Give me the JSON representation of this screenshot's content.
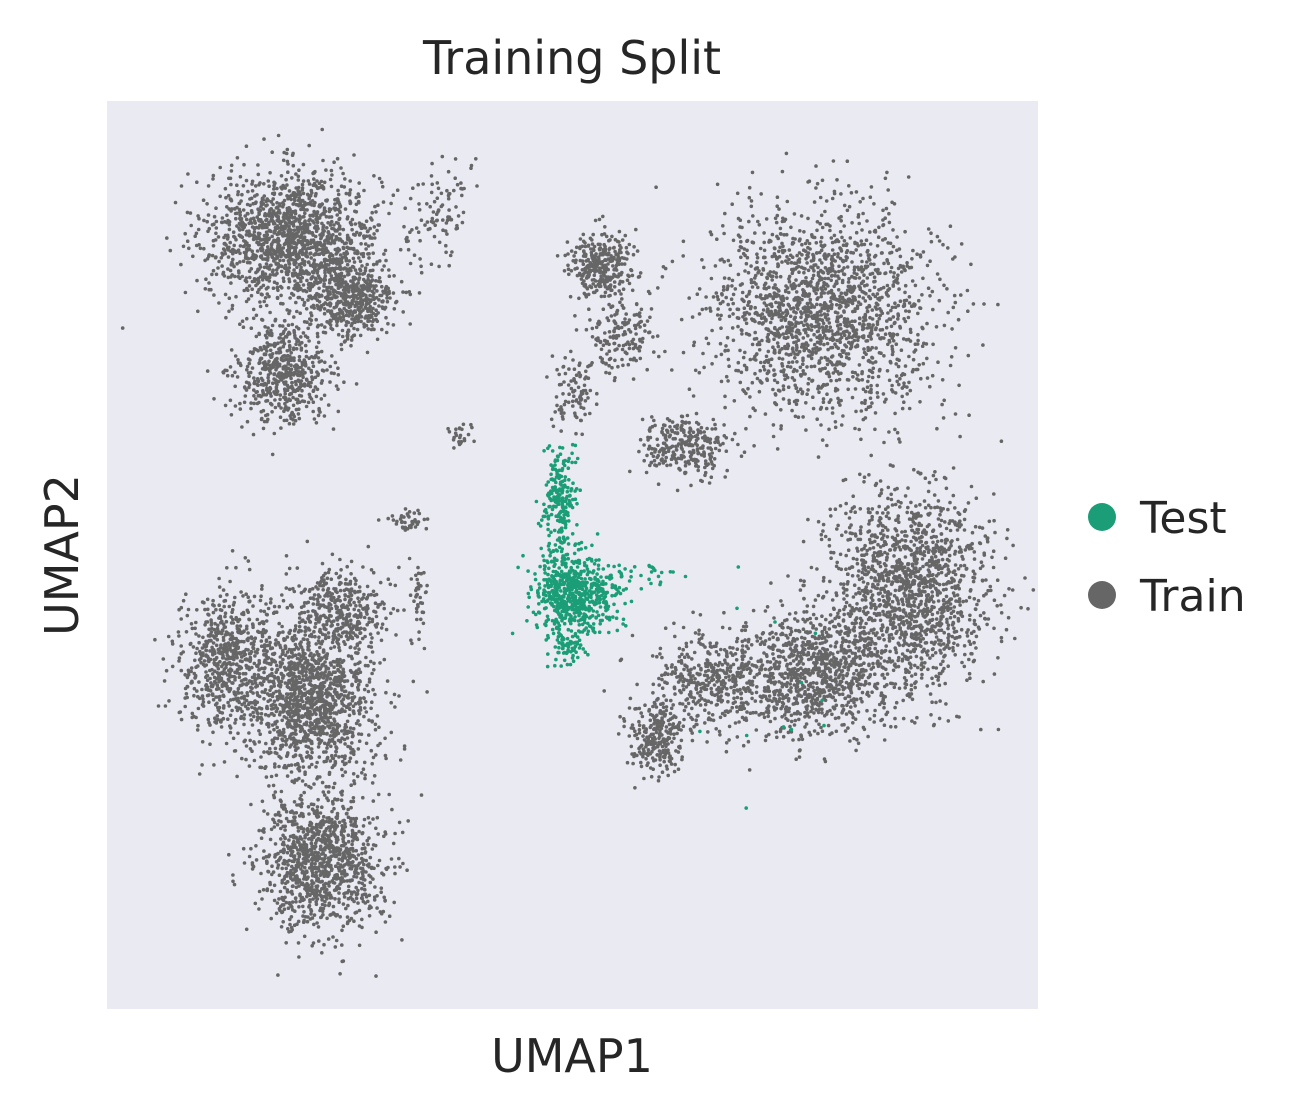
{
  "chart_data": {
    "type": "scatter",
    "title": "Training Split",
    "xlabel": "UMAP1",
    "ylabel": "UMAP2",
    "grid": false,
    "legend_placement": "right",
    "xlim": [
      0,
      100
    ],
    "ylim": [
      0,
      100
    ],
    "background_color": "#eaeaf2",
    "series": [
      {
        "name": "Test",
        "color": "#1b9e77",
        "clusters": [
          {
            "cx": 49.5,
            "cy": 46,
            "rx": 3.2,
            "ry": 4.0,
            "n": 520
          },
          {
            "cx": 48.5,
            "cy": 56,
            "rx": 1.6,
            "ry": 5.0,
            "n": 220
          },
          {
            "cx": 53,
            "cy": 45,
            "rx": 2.5,
            "ry": 3.0,
            "n": 130
          },
          {
            "cx": 58,
            "cy": 48,
            "rx": 4.0,
            "ry": 1.0,
            "n": 25
          },
          {
            "cx": 49.5,
            "cy": 40,
            "rx": 1.8,
            "ry": 1.8,
            "n": 70
          },
          {
            "cx": 72,
            "cy": 38,
            "rx": 12.0,
            "ry": 14.0,
            "n": 12
          }
        ]
      },
      {
        "name": "Train",
        "color": "#666666",
        "clusters": [
          {
            "cx": 20,
            "cy": 85,
            "rx": 8.5,
            "ry": 6.5,
            "n": 1500
          },
          {
            "cx": 26,
            "cy": 78,
            "rx": 4.5,
            "ry": 4.0,
            "n": 500
          },
          {
            "cx": 19,
            "cy": 70,
            "rx": 4.5,
            "ry": 5.0,
            "n": 550
          },
          {
            "cx": 36,
            "cy": 88,
            "rx": 3.0,
            "ry": 5.0,
            "n": 90
          },
          {
            "cx": 53,
            "cy": 82,
            "rx": 3.0,
            "ry": 3.5,
            "n": 320
          },
          {
            "cx": 55,
            "cy": 74,
            "rx": 3.0,
            "ry": 4.0,
            "n": 160
          },
          {
            "cx": 50,
            "cy": 68,
            "rx": 2.0,
            "ry": 3.5,
            "n": 90
          },
          {
            "cx": 77,
            "cy": 77,
            "rx": 11.0,
            "ry": 10.0,
            "n": 1800
          },
          {
            "cx": 62,
            "cy": 62,
            "rx": 4.0,
            "ry": 3.0,
            "n": 280
          },
          {
            "cx": 86,
            "cy": 46,
            "rx": 8.0,
            "ry": 10.0,
            "n": 1500
          },
          {
            "cx": 76,
            "cy": 37,
            "rx": 7.0,
            "ry": 6.0,
            "n": 900
          },
          {
            "cx": 65,
            "cy": 36,
            "rx": 6.0,
            "ry": 5.0,
            "n": 450
          },
          {
            "cx": 59,
            "cy": 30,
            "rx": 3.0,
            "ry": 3.5,
            "n": 260
          },
          {
            "cx": 13,
            "cy": 38,
            "rx": 5.0,
            "ry": 7.5,
            "n": 700
          },
          {
            "cx": 22,
            "cy": 34,
            "rx": 6.0,
            "ry": 8.0,
            "n": 1300
          },
          {
            "cx": 23,
            "cy": 16,
            "rx": 6.0,
            "ry": 7.0,
            "n": 1100
          },
          {
            "cx": 25,
            "cy": 44,
            "rx": 5.0,
            "ry": 4.0,
            "n": 350
          },
          {
            "cx": 33.5,
            "cy": 45,
            "rx": 0.9,
            "ry": 4.0,
            "n": 40
          },
          {
            "cx": 32,
            "cy": 54,
            "rx": 2.0,
            "ry": 1.0,
            "n": 40
          },
          {
            "cx": 38,
            "cy": 63,
            "rx": 1.2,
            "ry": 1.5,
            "n": 25
          }
        ]
      }
    ]
  }
}
